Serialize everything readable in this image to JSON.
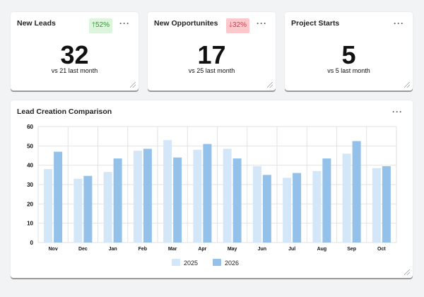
{
  "kpis": [
    {
      "title": "New Leads",
      "value": "32",
      "compare": "vs 21 last month",
      "badge": "52%",
      "trend": "up",
      "badge_color": "#2e9a2e",
      "badge_bg": "#dcf5dc"
    },
    {
      "title": "New Opportunites",
      "value": "17",
      "compare": "vs 25 last month",
      "badge": "32%",
      "trend": "down",
      "badge_color": "#d03a4a",
      "badge_bg": "#fcc8cc"
    },
    {
      "title": "Project Starts",
      "value": "5",
      "compare": "vs 5 last month"
    }
  ],
  "more_label": "···",
  "chart_data": {
    "type": "bar",
    "title": "Lead Creation Comparison",
    "categories": [
      "Nov",
      "Dec",
      "Jan",
      "Feb",
      "Mar",
      "Apr",
      "May",
      "Jun",
      "Jul",
      "Aug",
      "Sep",
      "Oct"
    ],
    "series": [
      {
        "name": "2025",
        "color": "#d3e7f8",
        "values": [
          38,
          33,
          36.5,
          47.5,
          53,
          48,
          48.5,
          39.5,
          33.5,
          37,
          46,
          38.5
        ]
      },
      {
        "name": "2026",
        "color": "#93c1ea",
        "values": [
          47,
          34.5,
          43.5,
          48.5,
          44,
          51,
          43.5,
          35,
          36,
          43.5,
          52.5,
          39.5
        ]
      }
    ],
    "ylim": [
      0,
      60
    ],
    "yticks": [
      0,
      10,
      20,
      30,
      40,
      50,
      60
    ],
    "grid": true,
    "legend": "bottom"
  }
}
